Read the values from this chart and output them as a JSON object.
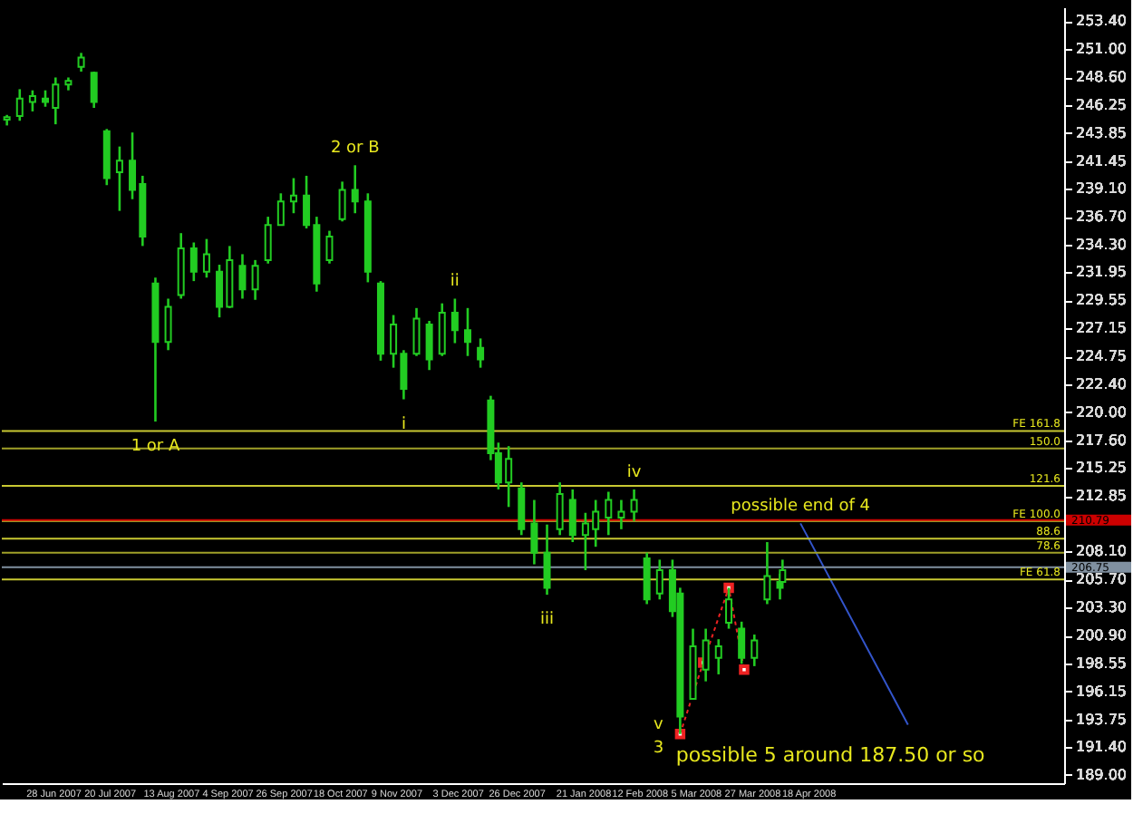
{
  "chart_data": {
    "type": "candlestick",
    "color": "#22cc22",
    "x": [
      "2007-06-10",
      "2007-06-15",
      "2007-06-20",
      "2007-06-25",
      "2007-06-29",
      "2007-07-04",
      "2007-07-09",
      "2007-07-14",
      "2007-07-19",
      "2007-07-24",
      "2007-07-29",
      "2007-08-02",
      "2007-08-07",
      "2007-08-12",
      "2007-08-17",
      "2007-08-22",
      "2007-08-27",
      "2007-09-01",
      "2007-09-05",
      "2007-09-10",
      "2007-09-15",
      "2007-09-20",
      "2007-09-25",
      "2007-09-30",
      "2007-10-05",
      "2007-10-09",
      "2007-10-14",
      "2007-10-19",
      "2007-10-24",
      "2007-10-29",
      "2007-11-03",
      "2007-11-08",
      "2007-11-12",
      "2007-11-17",
      "2007-11-22",
      "2007-11-27",
      "2007-12-02",
      "2007-12-07",
      "2007-12-12",
      "2007-12-16",
      "2007-12-19",
      "2007-12-23",
      "2007-12-28",
      "2008-01-02",
      "2008-01-07",
      "2008-01-12",
      "2008-01-17",
      "2008-01-22",
      "2008-01-26",
      "2008-01-31",
      "2008-02-05",
      "2008-02-10",
      "2008-02-15",
      "2008-02-20",
      "2008-02-25",
      "2008-02-28",
      "2008-03-04",
      "2008-03-09",
      "2008-03-14",
      "2008-03-18",
      "2008-03-23",
      "2008-03-28",
      "2008-04-02",
      "2008-04-07",
      "2008-04-08"
    ],
    "ohlc": [
      [
        245.0,
        245.4,
        244.5,
        245.2
      ],
      [
        245.3,
        247.6,
        244.9,
        246.8
      ],
      [
        246.5,
        247.5,
        245.7,
        247.0
      ],
      [
        246.8,
        247.5,
        246.1,
        246.5
      ],
      [
        246.0,
        248.6,
        244.6,
        248.0
      ],
      [
        248.0,
        248.6,
        247.5,
        248.3
      ],
      [
        249.5,
        250.7,
        249.1,
        250.3
      ],
      [
        249.0,
        249.1,
        246.0,
        246.5
      ],
      [
        244.0,
        244.2,
        239.4,
        240.0
      ],
      [
        240.5,
        242.7,
        237.2,
        241.5
      ],
      [
        241.5,
        243.9,
        238.2,
        239.0
      ],
      [
        239.5,
        240.2,
        234.2,
        235.0
      ],
      [
        231.0,
        231.5,
        219.2,
        226.0
      ],
      [
        226.0,
        229.7,
        225.3,
        229.0
      ],
      [
        230.0,
        235.3,
        229.7,
        234.0
      ],
      [
        234.0,
        234.5,
        231.2,
        232.0
      ],
      [
        232.0,
        234.8,
        231.5,
        233.5
      ],
      [
        232.0,
        232.6,
        228.1,
        229.0
      ],
      [
        229.0,
        234.2,
        228.9,
        233.0
      ],
      [
        232.5,
        233.5,
        229.7,
        230.5
      ],
      [
        230.5,
        233.0,
        229.6,
        232.5
      ],
      [
        233.0,
        236.7,
        232.7,
        236.0
      ],
      [
        236.0,
        238.7,
        236.0,
        238.0
      ],
      [
        238.0,
        240.0,
        237.0,
        238.5
      ],
      [
        238.5,
        240.2,
        235.7,
        236.0
      ],
      [
        236.0,
        236.7,
        230.3,
        231.0
      ],
      [
        233.0,
        235.5,
        232.7,
        235.0
      ],
      [
        236.5,
        239.7,
        236.3,
        239.0
      ],
      [
        239.0,
        241.1,
        237.0,
        238.0
      ],
      [
        238.0,
        238.7,
        231.1,
        232.0
      ],
      [
        231.0,
        231.2,
        224.4,
        225.0
      ],
      [
        225.0,
        228.3,
        223.8,
        227.5
      ],
      [
        225.0,
        225.3,
        221.1,
        222.0
      ],
      [
        225.0,
        228.9,
        224.8,
        228.0
      ],
      [
        227.5,
        227.8,
        223.6,
        224.5
      ],
      [
        225.0,
        229.3,
        224.8,
        228.5
      ],
      [
        228.5,
        229.7,
        225.9,
        227.0
      ],
      [
        227.0,
        228.9,
        224.8,
        226.0
      ],
      [
        225.5,
        226.3,
        223.8,
        224.5
      ],
      [
        221.0,
        221.4,
        215.9,
        216.5
      ],
      [
        216.5,
        217.4,
        213.4,
        214.0
      ],
      [
        214.0,
        217.1,
        211.9,
        216.0
      ],
      [
        213.5,
        214.0,
        209.5,
        210.0
      ],
      [
        210.5,
        212.5,
        207.0,
        208.0
      ],
      [
        208.0,
        210.4,
        204.4,
        205.0
      ],
      [
        210.0,
        214.0,
        209.5,
        213.0
      ],
      [
        212.5,
        213.4,
        208.9,
        209.5
      ],
      [
        209.5,
        211.4,
        206.5,
        210.5
      ],
      [
        210.0,
        212.5,
        208.5,
        211.5
      ],
      [
        211.0,
        213.2,
        209.5,
        212.5
      ],
      [
        211.0,
        212.5,
        210.0,
        211.5
      ],
      [
        211.5,
        213.4,
        210.7,
        212.5
      ],
      [
        207.5,
        208.0,
        203.6,
        204.0
      ],
      [
        204.5,
        207.4,
        204.0,
        206.5
      ],
      [
        206.5,
        207.4,
        202.5,
        203.0
      ],
      [
        204.5,
        205.0,
        192.5,
        194.0
      ],
      [
        195.5,
        201.5,
        195.5,
        200.0
      ],
      [
        198.0,
        201.5,
        197.0,
        200.5
      ],
      [
        199.0,
        200.6,
        197.6,
        200.0
      ],
      [
        202.0,
        205.0,
        201.5,
        204.0
      ],
      [
        201.5,
        202.1,
        198.5,
        199.0
      ],
      [
        199.0,
        201.0,
        198.3,
        200.5
      ],
      [
        204.0,
        208.9,
        203.6,
        206.0
      ],
      [
        205.5,
        206.2,
        204.0,
        205.0
      ],
      [
        205.5,
        207.4,
        205.5,
        206.5
      ]
    ],
    "series": [
      {
        "type": "line",
        "color": "#ee2222",
        "line_style": "dotted",
        "marker": "square",
        "x": [
          "2008-02-28",
          "2008-03-08",
          "2008-03-18",
          "2008-03-24"
        ],
        "values": [
          192.5,
          198.6,
          205.0,
          198.0
        ]
      },
      {
        "type": "line",
        "color": "#3355cc",
        "line_style": "solid",
        "x": [
          "2008-04-15",
          "2008-05-27"
        ],
        "values": [
          210.5,
          193.3
        ]
      }
    ],
    "ylim": [
      188.3,
      254.6
    ],
    "yticks": [
      {
        "value": 253.4,
        "label": "253.40"
      },
      {
        "value": 251.0,
        "label": "251.00"
      },
      {
        "value": 248.6,
        "label": "248.60"
      },
      {
        "value": 246.25,
        "label": "246.25"
      },
      {
        "value": 243.85,
        "label": "243.85"
      },
      {
        "value": 241.45,
        "label": "241.45"
      },
      {
        "value": 239.1,
        "label": "239.10"
      },
      {
        "value": 236.7,
        "label": "236.70"
      },
      {
        "value": 234.3,
        "label": "234.30"
      },
      {
        "value": 231.95,
        "label": "231.95"
      },
      {
        "value": 229.55,
        "label": "229.55"
      },
      {
        "value": 227.15,
        "label": "227.15"
      },
      {
        "value": 224.75,
        "label": "224.75"
      },
      {
        "value": 222.4,
        "label": "222.40"
      },
      {
        "value": 220.0,
        "label": "220.00"
      },
      {
        "value": 217.6,
        "label": "217.60"
      },
      {
        "value": 215.25,
        "label": "215.25"
      },
      {
        "value": 212.85,
        "label": "212.85"
      },
      {
        "value": 208.1,
        "label": "208.10"
      },
      {
        "value": 205.7,
        "label": "205.70"
      },
      {
        "value": 203.3,
        "label": "203.30"
      },
      {
        "value": 200.9,
        "label": "200.90"
      },
      {
        "value": 198.55,
        "label": "198.55"
      },
      {
        "value": 196.15,
        "label": "196.15"
      },
      {
        "value": 193.75,
        "label": "193.75"
      },
      {
        "value": 191.4,
        "label": "191.40"
      },
      {
        "value": 189.0,
        "label": "189.00"
      }
    ],
    "xlim": [
      "2007-06-08",
      "2008-07-27"
    ],
    "xticks": [
      {
        "value": "2007-06-28",
        "label": "28 Jun 2007"
      },
      {
        "value": "2007-07-20",
        "label": "20 Jul 2007"
      },
      {
        "value": "2007-08-13",
        "label": "13 Aug 2007"
      },
      {
        "value": "2007-09-04",
        "label": "4 Sep 2007"
      },
      {
        "value": "2007-09-26",
        "label": "26 Sep 2007"
      },
      {
        "value": "2007-10-18",
        "label": "18 Oct 2007"
      },
      {
        "value": "2007-11-09",
        "label": "9 Nov 2007"
      },
      {
        "value": "2007-12-03",
        "label": "3 Dec 2007"
      },
      {
        "value": "2007-12-26",
        "label": "26 Dec 2007"
      },
      {
        "value": "2008-01-21",
        "label": "21 Jan 2008"
      },
      {
        "value": "2008-02-12",
        "label": "12 Feb 2008"
      },
      {
        "value": "2008-03-05",
        "label": "5 Mar 2008"
      },
      {
        "value": "2008-03-27",
        "label": "27 Mar 2008"
      },
      {
        "value": "2008-04-18",
        "label": "18 Apr 2008"
      }
    ],
    "ref_lines": [
      {
        "axis": "y",
        "value": 218.4,
        "color": "#c8c832"
      },
      {
        "axis": "y",
        "value": 216.9,
        "color": "#a0a028"
      },
      {
        "axis": "y",
        "value": 213.7,
        "color": "#c8c832"
      },
      {
        "axis": "y",
        "value": 210.7,
        "color": "#c8c832"
      },
      {
        "axis": "y",
        "value": 209.2,
        "color": "#c8c832"
      },
      {
        "axis": "y",
        "value": 208.0,
        "color": "#a0a028"
      },
      {
        "axis": "y",
        "value": 205.7,
        "color": "#c8c832"
      },
      {
        "axis": "y",
        "value": 210.79,
        "label": "210.79",
        "color": "#cc0000"
      },
      {
        "axis": "y",
        "value": 206.75,
        "label": "206.75",
        "color": "#8090a0"
      }
    ],
    "annotations": [
      {
        "text": "1 or A",
        "x": "2007-08-07",
        "y": 219.2
      },
      {
        "text": "2 or B",
        "x": "2007-10-24",
        "y": 241.1
      },
      {
        "text": "i",
        "x": "2007-11-12",
        "y": 221.1
      },
      {
        "text": "ii",
        "x": "2007-12-02",
        "y": 229.7
      },
      {
        "text": "iii",
        "x": "2008-01-07",
        "y": 204.4
      },
      {
        "text": "iv",
        "x": "2008-02-10",
        "y": 213.4
      },
      {
        "text": "v",
        "x": "2008-02-28",
        "y": 192.5
      },
      {
        "text": "3",
        "x": "2008-02-28",
        "y": 192.5
      },
      {
        "text": "possible end of 4",
        "x": "2008-04-15",
        "y": 210.5
      },
      {
        "text": "FE 161.8",
        "y": 218.4
      },
      {
        "text": "150.0",
        "y": 216.9
      },
      {
        "text": "121.6",
        "y": 213.7
      },
      {
        "text": "FE 100.0",
        "y": 210.7
      },
      {
        "text": "88.6",
        "y": 209.2
      },
      {
        "text": "78.6",
        "y": 208.0
      },
      {
        "text": "FE 61.8",
        "y": 205.7
      },
      "possible 5 around 187.50 or so"
    ]
  }
}
